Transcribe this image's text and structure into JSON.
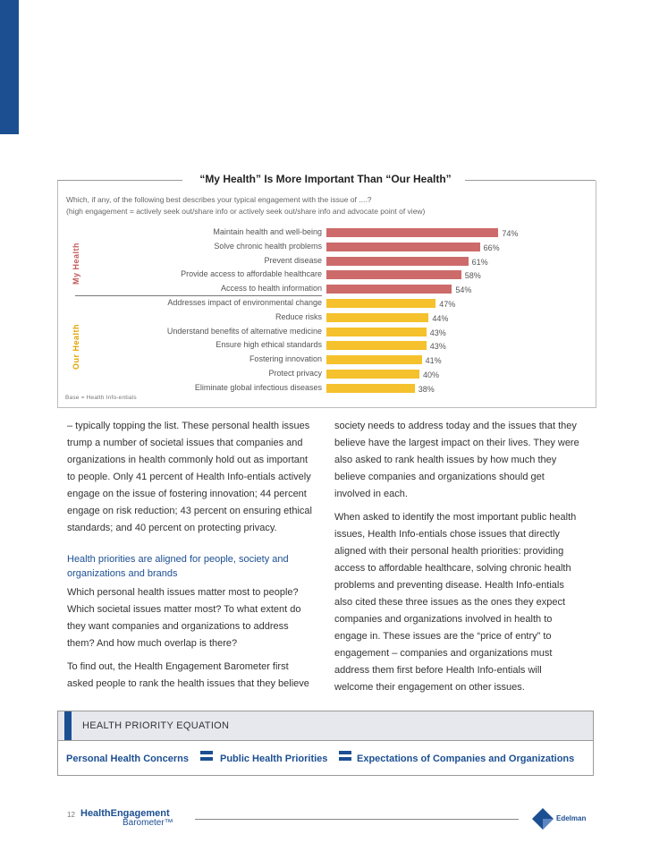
{
  "chart_data": {
    "type": "bar",
    "title": "“My Health” Is More Important Than “Our Health”",
    "question_line1": "Which, if any, of the following best describes your typical engagement with the issue of ....?",
    "question_line2": "(high engagement = actively seek out/share info or actively seek out/share info and advocate point of view)",
    "groups": [
      {
        "name": "My Health",
        "color": "#cd6b6b",
        "categories": [
          "Maintain health and well-being",
          "Solve chronic health problems",
          "Prevent disease",
          "Provide access to affordable healthcare",
          "Access to health information"
        ],
        "values": [
          74,
          66,
          61,
          58,
          54
        ],
        "labels": [
          "74%",
          "66%",
          "61%",
          "58%",
          "54%"
        ]
      },
      {
        "name": "Our Health",
        "color": "#f5c12c",
        "categories": [
          "Addresses impact of environmental change",
          "Reduce risks",
          "Understand benefits of alternative medicine",
          "Ensure high ethical standards",
          "Fostering innovation",
          "Protect privacy",
          "Eliminate global infectious diseases"
        ],
        "values": [
          47,
          44,
          43,
          43,
          41,
          40,
          38
        ],
        "labels": [
          "47%",
          "44%",
          "43%",
          "43%",
          "41%",
          "40%",
          "38%"
        ]
      }
    ],
    "base_note": "Base = Health Info-entials"
  },
  "left_column": {
    "p1": "– typically topping the list. These personal health issues trump a number of societal issues that companies and organizations in health commonly hold out as important to people. Only 41 percent of Health Info-entials actively engage on the issue of fostering innovation; 44 percent engage on risk reduction; 43 percent on ensuring ethical standards; and 40 percent on protecting privacy.",
    "subhead": "Health priorities are aligned for people, society and organizations and brands",
    "p2": "Which personal health issues matter most to people? Which societal issues matter most? To what extent do they want companies and organizations to address them? And how much overlap is there?",
    "p3": "To find out, the Health Engagement Barometer first asked people to rank the health issues that they believe"
  },
  "right_column": {
    "p1": "society needs to address today and the issues that they believe have the largest impact on their lives. They were also asked to rank health issues by how much they believe companies and organizations should get involved in each.",
    "p2": "When asked to identify the most important public health issues, Health Info-entials chose issues that directly aligned with their personal health priorities: providing access to affordable healthcare, solving chronic health problems and preventing disease. Health Info-entials also cited these three issues as the ones they expect companies and organizations involved in health to engage in. These issues are the “price of entry” to engagement – companies and organizations must address them first before Health Info-entials will welcome their engagement on other issues."
  },
  "equation": {
    "title": "HEALTH PRIORITY EQUATION",
    "item1": "Personal Health Concerns",
    "item2": "Public Health Priorities",
    "item3": "Expectations of Companies and Organizations"
  },
  "footer": {
    "page_number": "12",
    "brand_line1": "HealthEngagement",
    "brand_line2": "Barometer™",
    "logo_text": "Edelman"
  },
  "colors": {
    "accent": "#1c4f92",
    "my_health": "#cd6b6b",
    "our_health": "#f5c12c"
  }
}
